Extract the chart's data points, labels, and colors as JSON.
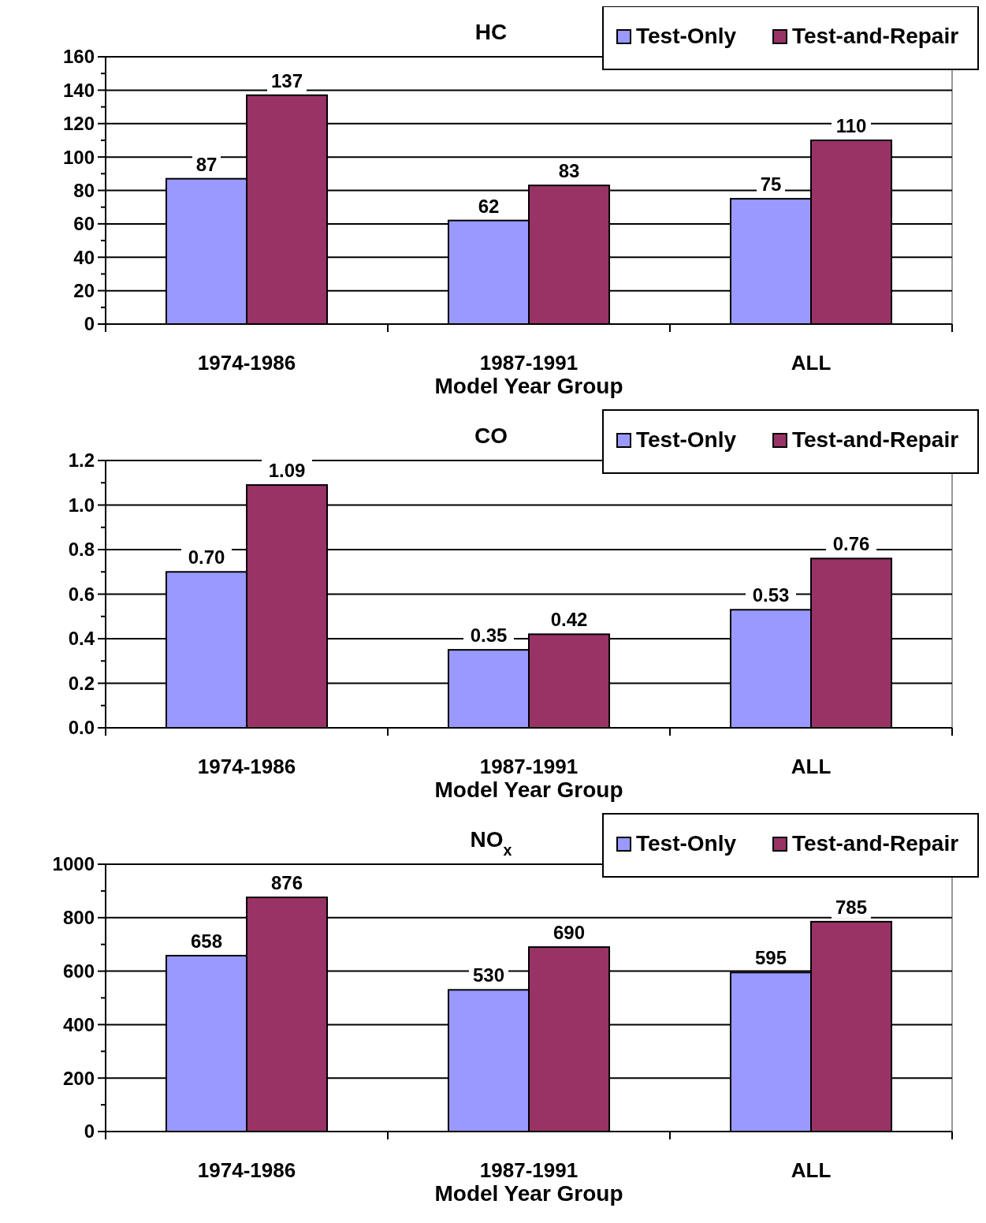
{
  "chart_data": [
    {
      "type": "bar",
      "title": "HC",
      "xlabel": "Model Year Group",
      "categories": [
        "1974-1986",
        "1987-1991",
        "ALL"
      ],
      "legend": "top right",
      "grid": "y",
      "data_labels": true,
      "ylim": [
        0,
        160
      ],
      "yticks": [
        0,
        {
          "value": 10,
          "label": null
        },
        20,
        {
          "value": 30,
          "label": null
        },
        40,
        {
          "value": 50,
          "label": null
        },
        60,
        {
          "value": 70,
          "label": null
        },
        80,
        {
          "value": 90,
          "label": null
        },
        100,
        {
          "value": 110,
          "label": null
        },
        120,
        {
          "value": 130,
          "label": null
        },
        140,
        {
          "value": 150,
          "label": null
        },
        160
      ],
      "series": [
        {
          "name": "Test-Only",
          "color": "#9999ff",
          "values": [
            87,
            62,
            75
          ]
        },
        {
          "name": "Test-and-Repair",
          "color": "#993366",
          "values": [
            137,
            83,
            110
          ]
        }
      ]
    },
    {
      "type": "bar",
      "title": "CO",
      "xlabel": "Model Year Group",
      "categories": [
        "1974-1986",
        "1987-1991",
        "ALL"
      ],
      "legend": "top right",
      "grid": "y",
      "ylim": [
        0,
        1.2
      ],
      "yticks": [
        {
          "value": 0,
          "label": "0.0"
        },
        {
          "value": 0.1,
          "label": null
        },
        {
          "value": 0.2,
          "label": "0.2"
        },
        {
          "value": 0.3,
          "label": null
        },
        {
          "value": 0.4,
          "label": "0.4"
        },
        {
          "value": 0.5,
          "label": null
        },
        {
          "value": 0.6,
          "label": "0.6"
        },
        {
          "value": 0.7,
          "label": null
        },
        {
          "value": 0.8,
          "label": "0.8"
        },
        {
          "value": 0.9,
          "label": null
        },
        {
          "value": 1.0,
          "label": "1.0"
        },
        {
          "value": 1.1,
          "label": null
        },
        {
          "value": 1.2,
          "label": "1.2"
        }
      ],
      "series": [
        {
          "name": "Test-Only",
          "color": "#9999ff",
          "values": [
            0.7,
            0.35,
            0.53
          ],
          "value_labels": [
            "0.70",
            "0.35",
            "0.53"
          ]
        },
        {
          "name": "Test-and-Repair",
          "color": "#993366",
          "values": [
            1.09,
            0.42,
            0.76
          ],
          "value_labels": [
            "1.09",
            "0.42",
            "0.76"
          ]
        }
      ]
    },
    {
      "type": "bar",
      "title": "NO$_{x}$",
      "xlabel": "Model Year Group",
      "categories": [
        "1974-1986",
        "1987-1991",
        "ALL"
      ],
      "legend": "top right",
      "grid": "y",
      "data_labels": true,
      "ylim": [
        0,
        1000
      ],
      "yticks": [
        0,
        {
          "value": 100,
          "label": null
        },
        200,
        {
          "value": 300,
          "label": null
        },
        400,
        {
          "value": 500,
          "label": null
        },
        600,
        {
          "value": 700,
          "label": null
        },
        800,
        {
          "value": 900,
          "label": null
        },
        1000
      ],
      "series": [
        {
          "name": "Test-Only",
          "color": "#9999ff",
          "values": [
            658,
            530,
            595
          ]
        },
        {
          "name": "Test-and-Repair",
          "color": "#993366",
          "values": [
            876,
            690,
            785
          ]
        }
      ]
    }
  ]
}
